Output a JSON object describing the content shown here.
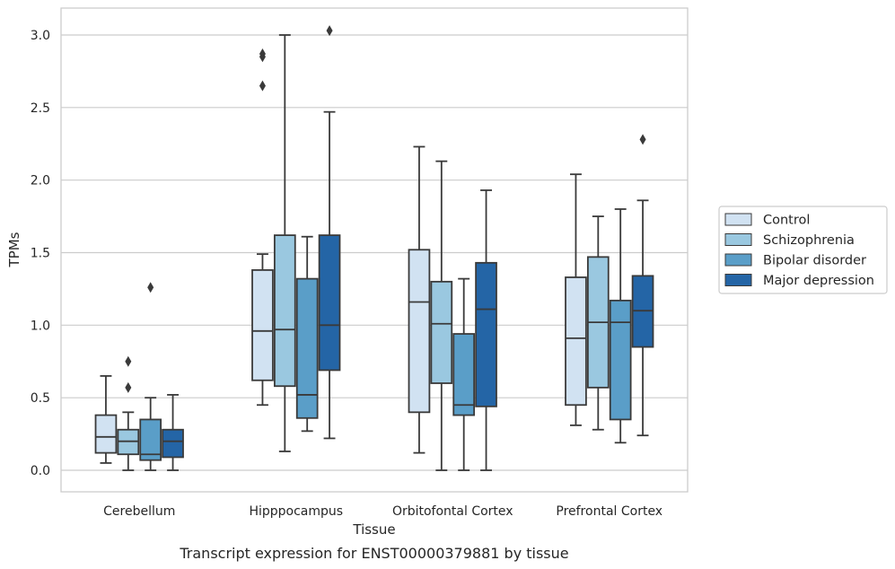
{
  "chart_data": {
    "type": "box",
    "caption": "Transcript expression for ENST00000379881 by tissue",
    "xlabel": "Tissue",
    "ylabel": "TPMs",
    "ylim": [
      -0.15,
      3.2
    ],
    "yticks": [
      0.0,
      0.5,
      1.0,
      1.5,
      2.0,
      2.5,
      3.0
    ],
    "ytick_labels": [
      "0.0",
      "0.5",
      "1.0",
      "1.5",
      "2.0",
      "2.5",
      "3.0"
    ],
    "grid": "horizontal",
    "legend_position": "right",
    "categories": [
      "Cerebellum",
      "Hipppocampus",
      "Orbitofontal Cortex",
      "Prefrontal Cortex"
    ],
    "series": [
      {
        "name": "Control",
        "color": "#d1e2f2",
        "boxes": [
          {
            "whislo": 0.05,
            "q1": 0.12,
            "med": 0.23,
            "q3": 0.38,
            "whishi": 0.65,
            "fliers": []
          },
          {
            "whislo": 0.45,
            "q1": 0.62,
            "med": 0.96,
            "q3": 1.38,
            "whishi": 1.49,
            "fliers": [
              2.65,
              2.85,
              2.87
            ]
          },
          {
            "whislo": 0.12,
            "q1": 0.4,
            "med": 1.16,
            "q3": 1.52,
            "whishi": 2.23,
            "fliers": []
          },
          {
            "whislo": 0.31,
            "q1": 0.45,
            "med": 0.91,
            "q3": 1.33,
            "whishi": 2.04,
            "fliers": []
          }
        ]
      },
      {
        "name": "Schizophrenia",
        "color": "#9ac8e0",
        "boxes": [
          {
            "whislo": 0.0,
            "q1": 0.11,
            "med": 0.2,
            "q3": 0.28,
            "whishi": 0.4,
            "fliers": [
              0.57,
              0.75
            ]
          },
          {
            "whislo": 0.13,
            "q1": 0.58,
            "med": 0.97,
            "q3": 1.62,
            "whishi": 3.0,
            "fliers": []
          },
          {
            "whislo": 0.0,
            "q1": 0.6,
            "med": 1.01,
            "q3": 1.3,
            "whishi": 2.13,
            "fliers": []
          },
          {
            "whislo": 0.28,
            "q1": 0.57,
            "med": 1.02,
            "q3": 1.47,
            "whishi": 1.75,
            "fliers": []
          }
        ]
      },
      {
        "name": "Bipolar disorder",
        "color": "#5a9ec8",
        "boxes": [
          {
            "whislo": 0.0,
            "q1": 0.07,
            "med": 0.11,
            "q3": 0.35,
            "whishi": 0.5,
            "fliers": [
              1.26
            ]
          },
          {
            "whislo": 0.27,
            "q1": 0.36,
            "med": 0.52,
            "q3": 1.32,
            "whishi": 1.61,
            "fliers": []
          },
          {
            "whislo": 0.0,
            "q1": 0.38,
            "med": 0.45,
            "q3": 0.94,
            "whishi": 1.32,
            "fliers": []
          },
          {
            "whislo": 0.19,
            "q1": 0.35,
            "med": 1.02,
            "q3": 1.17,
            "whishi": 1.8,
            "fliers": []
          }
        ]
      },
      {
        "name": "Major depression",
        "color": "#2465a6",
        "boxes": [
          {
            "whislo": 0.0,
            "q1": 0.09,
            "med": 0.2,
            "q3": 0.28,
            "whishi": 0.52,
            "fliers": []
          },
          {
            "whislo": 0.22,
            "q1": 0.69,
            "med": 1.0,
            "q3": 1.62,
            "whishi": 2.47,
            "fliers": [
              3.03
            ]
          },
          {
            "whislo": 0.0,
            "q1": 0.44,
            "med": 1.11,
            "q3": 1.43,
            "whishi": 1.93,
            "fliers": []
          },
          {
            "whislo": 0.24,
            "q1": 0.85,
            "med": 1.1,
            "q3": 1.34,
            "whishi": 1.86,
            "fliers": [
              2.28
            ]
          }
        ]
      }
    ]
  }
}
